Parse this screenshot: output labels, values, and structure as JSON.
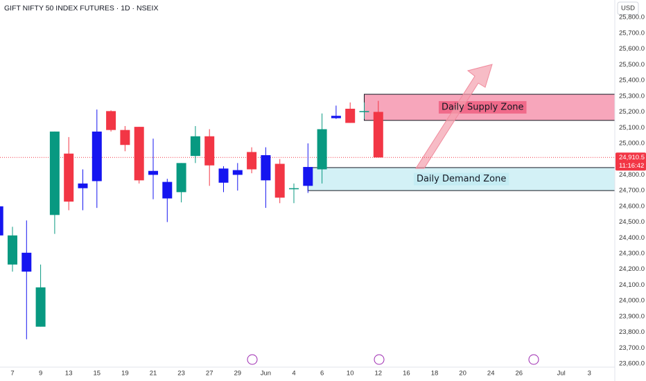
{
  "chart_data": {
    "type": "candlestick",
    "title": "GIFT NIFTY 50 INDEX FUTURES · 1D · NSEIX",
    "currency": "USD",
    "categories": [
      null,
      "7",
      null,
      "9",
      null,
      "13",
      null,
      "15",
      null,
      "19",
      null,
      "21",
      null,
      "23",
      null,
      "27",
      null,
      "29",
      null,
      "Jun",
      null,
      "4",
      null,
      "6",
      null,
      "10",
      null,
      "12",
      null,
      "16",
      null,
      "18",
      null,
      "20",
      null,
      "24",
      null,
      "26",
      null,
      null,
      "Jul",
      null,
      "3",
      null
    ],
    "open": [
      24600,
      24230,
      24305,
      23835,
      24545,
      24935,
      24745,
      24760,
      25205,
      25085,
      25105,
      24825,
      24755,
      24690,
      24920,
      25045,
      24840,
      24800,
      24945,
      24925,
      24870,
      24710,
      24730,
      24835,
      25160,
      25220,
      25200,
      25200,
      null,
      null,
      null,
      null,
      null,
      null,
      null,
      null,
      null,
      null,
      null,
      null,
      null,
      null,
      null,
      null
    ],
    "high": [
      24610,
      24470,
      24510,
      24230,
      25075,
      25040,
      24835,
      25215,
      25210,
      25110,
      25105,
      25030,
      24775,
      24875,
      25110,
      25090,
      24855,
      24875,
      24975,
      24975,
      24900,
      24745,
      25000,
      25190,
      25240,
      25260,
      25260,
      25270,
      null,
      null,
      null,
      null,
      null,
      null,
      null,
      null,
      null,
      null,
      null,
      null,
      null,
      null,
      null,
      null
    ],
    "low": [
      24405,
      24185,
      23755,
      23835,
      24425,
      24575,
      24575,
      24590,
      25075,
      24950,
      24745,
      24645,
      24500,
      24625,
      24875,
      24730,
      24690,
      24700,
      24810,
      24590,
      24620,
      24620,
      24685,
      24745,
      25155,
      25130,
      25155,
      24910.5,
      null,
      null,
      null,
      null,
      null,
      null,
      null,
      null,
      null,
      null,
      null,
      null,
      null,
      null,
      null,
      null
    ],
    "close": [
      24415,
      24415,
      24185,
      24085,
      25075,
      24630,
      24715,
      25075,
      25085,
      24990,
      24765,
      24800,
      24650,
      24875,
      25045,
      24860,
      24750,
      24830,
      24835,
      24765,
      24655,
      24715,
      24850,
      25090,
      25175,
      25130,
      25205,
      24910.5,
      null,
      null,
      null,
      null,
      null,
      null,
      null,
      null,
      null,
      null,
      null,
      null,
      null,
      null,
      null,
      null
    ],
    "colors": [
      "#1515f0",
      "#089981",
      "#1515f0",
      "#089981",
      "#089981",
      "#f23645",
      "#1515f0",
      "#1515f0",
      "#f23645",
      "#f23645",
      "#f23645",
      "#1515f0",
      "#1515f0",
      "#089981",
      "#089981",
      "#f23645",
      "#1515f0",
      "#1515f0",
      "#f23645",
      "#1515f0",
      "#f23645",
      "#089981",
      "#1515f0",
      "#089981",
      "#1515f0",
      "#f23645",
      "#089981",
      "#f23645",
      null,
      null,
      null,
      null,
      null,
      null,
      null,
      null,
      null,
      null,
      null,
      null,
      null,
      null,
      null,
      null
    ],
    "ylim": [
      23578,
      25911
    ],
    "yticks": [
      {
        "value": 23600,
        "label": "23,600.0"
      },
      {
        "value": 23700,
        "label": "23,700.0"
      },
      {
        "value": 23800,
        "label": "23,800.0"
      },
      {
        "value": 23900,
        "label": "23,900.0"
      },
      {
        "value": 24000,
        "label": "24,000.0"
      },
      {
        "value": 24100,
        "label": "24,100.0"
      },
      {
        "value": 24200,
        "label": "24,200.0"
      },
      {
        "value": 24300,
        "label": "24,300.0"
      },
      {
        "value": 24400,
        "label": "24,400.0"
      },
      {
        "value": 24500,
        "label": "24,500.0"
      },
      {
        "value": 24600,
        "label": "24,600.0"
      },
      {
        "value": 24700,
        "label": "24,700.0"
      },
      {
        "value": 24800,
        "label": "24,800.0"
      },
      {
        "value": 25000,
        "label": "25,000.0"
      },
      {
        "value": 25100,
        "label": "25,100.0"
      },
      {
        "value": 25200,
        "label": "25,200.0"
      },
      {
        "value": 25300,
        "label": "25,300.0"
      },
      {
        "value": 25400,
        "label": "25,400.0"
      },
      {
        "value": 25500,
        "label": "25,500.0"
      },
      {
        "value": 25600,
        "label": "25,600.0"
      },
      {
        "value": 25700,
        "label": "25,700.0"
      },
      {
        "value": 25800,
        "label": "25,800.0"
      }
    ],
    "grid": false,
    "last_price": {
      "value": 24910.5,
      "label": "24,910.5",
      "countdown": "11:16:42",
      "color": "#f23645"
    },
    "zones": [
      {
        "label": "Daily Supply Zone",
        "top": 25312,
        "bottom": 25146,
        "color": "#f7a6bb",
        "label_color": "#f06a8a"
      },
      {
        "label": "Daily Demand Zone",
        "top": 24846,
        "bottom": 24700,
        "color": "#d3f1f6",
        "label_color": "#c4ecf3"
      }
    ]
  }
}
